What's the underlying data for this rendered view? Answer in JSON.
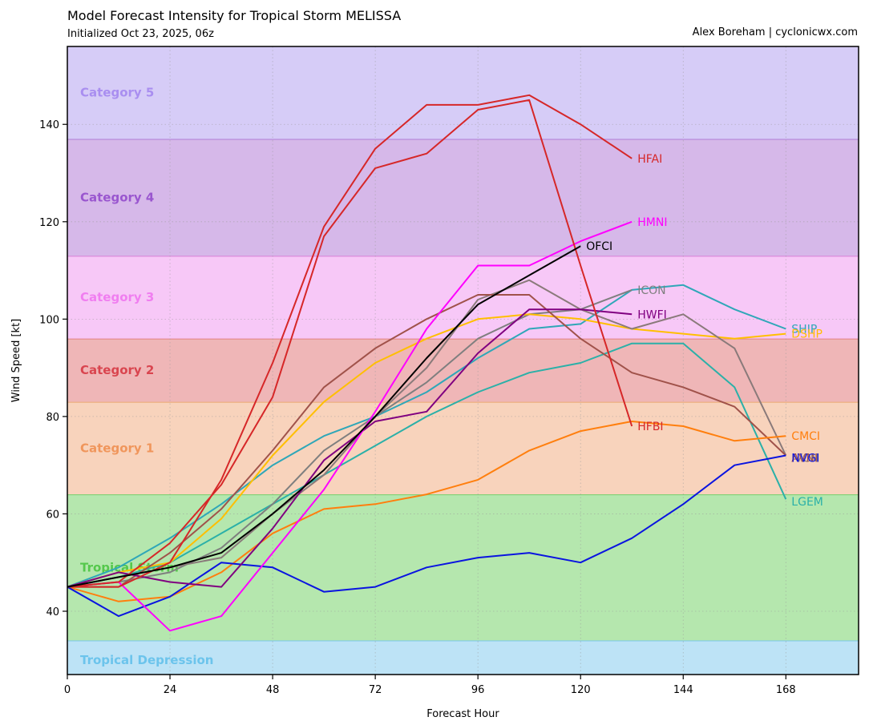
{
  "header": {
    "title": "Model Forecast Intensity for Tropical Storm MELISSA",
    "subtitle": "Initialized Oct 23, 2025, 06z",
    "credit": "Alex Boreham | cyclonicwx.com"
  },
  "chart_data": {
    "type": "line",
    "title": "Model Forecast Intensity for Tropical Storm MELISSA",
    "xlabel": "Forecast Hour",
    "ylabel": "Wind Speed [kt]",
    "xlim": [
      0,
      185
    ],
    "ylim": [
      27,
      156
    ],
    "xticks": [
      0,
      24,
      48,
      72,
      96,
      120,
      144,
      168
    ],
    "yticks": [
      40,
      60,
      80,
      100,
      120,
      140
    ],
    "grid": true,
    "categories": [
      {
        "name": "Tropical Depression",
        "min": 27,
        "max": 34,
        "fill": "#bde3f6",
        "edge": "#7ec8e8",
        "text": "#6cc4ec",
        "label_y": 30
      },
      {
        "name": "Tropical Storm",
        "min": 34,
        "max": 64,
        "fill": "#b5e7ae",
        "edge": "#72cf6c",
        "text": "#55c84c",
        "label_y": 49
      },
      {
        "name": "Category 1",
        "min": 64,
        "max": 83,
        "fill": "#f8d3bc",
        "edge": "#e9a970",
        "text": "#f0965c",
        "label_y": 73.5
      },
      {
        "name": "Category 2",
        "min": 83,
        "max": 96,
        "fill": "#efb6b7",
        "edge": "#e2807f",
        "text": "#d9454f",
        "label_y": 89.5
      },
      {
        "name": "Category 3",
        "min": 96,
        "max": 113,
        "fill": "#f7c8f7",
        "edge": "#d982d9",
        "text": "#f07ef0",
        "label_y": 104.5
      },
      {
        "name": "Category 4",
        "min": 113,
        "max": 137,
        "fill": "#d6b8e9",
        "edge": "#b07fd8",
        "text": "#9a56cf",
        "label_y": 125
      },
      {
        "name": "Category 5",
        "min": 137,
        "max": 156,
        "fill": "#d6ccf7",
        "edge": "#b7a6ef",
        "text": "#a98ef0",
        "label_y": 146.5
      }
    ],
    "series": [
      {
        "name": "LGEM",
        "color": "#2bb0a8",
        "x": [
          0,
          12,
          24,
          36,
          48,
          60,
          72,
          84,
          96,
          108,
          120,
          132,
          144,
          156,
          168
        ],
        "y": [
          45,
          47,
          50,
          56,
          62,
          68,
          74,
          80,
          85,
          89,
          91,
          95,
          95,
          86,
          63
        ],
        "label_y": 62.5
      },
      {
        "name": "SHIP",
        "color": "#2fa7b8",
        "x": [
          0,
          12,
          24,
          36,
          48,
          60,
          72,
          84,
          96,
          108,
          120,
          132,
          144,
          156,
          168
        ],
        "y": [
          45,
          49,
          55,
          62,
          70,
          76,
          80,
          85,
          92,
          98,
          99,
          106,
          107,
          102,
          98
        ],
        "label_y": 98
      },
      {
        "name": "ICON",
        "color": "#7f7f7f",
        "x": [
          0,
          12,
          24,
          36,
          48,
          60,
          72,
          84,
          96,
          108,
          120,
          132
        ],
        "y": [
          45,
          46,
          48,
          53,
          62,
          73,
          80,
          87,
          96,
          101,
          102,
          106
        ],
        "label_y": 106
      },
      {
        "name": "DSHP",
        "color": "#ffbf00",
        "x": [
          0,
          12,
          24,
          36,
          48,
          60,
          72,
          84,
          96,
          108,
          120,
          132,
          144,
          156,
          168
        ],
        "y": [
          45,
          48,
          50,
          59,
          72,
          83,
          91,
          96,
          100,
          101,
          100,
          98,
          97,
          96,
          97
        ],
        "label_y": 97
      },
      {
        "name": "IVCN",
        "color": "#8a7a7a",
        "x": [
          0,
          12,
          24,
          36,
          48,
          60,
          72,
          84,
          96,
          108,
          120,
          132,
          144,
          156,
          168
        ],
        "y": [
          45,
          47,
          49,
          51,
          60,
          68,
          80,
          90,
          104,
          108,
          102,
          98,
          101,
          94,
          72
        ],
        "label_y": 71.5
      },
      {
        "name": "AVNI",
        "color": "#a0524a",
        "x": [
          0,
          12,
          24,
          36,
          48,
          60,
          72,
          84,
          96,
          108,
          120,
          132,
          144,
          156,
          168
        ],
        "y": [
          45,
          45,
          52,
          61,
          73,
          86,
          94,
          100,
          105,
          105,
          96,
          89,
          86,
          82,
          72
        ],
        "label_y": 71.5
      },
      {
        "name": "CMCI",
        "color": "#ff7f0e",
        "x": [
          0,
          12,
          24,
          36,
          48,
          60,
          72,
          84,
          96,
          108,
          120,
          132,
          144,
          156,
          168
        ],
        "y": [
          45,
          42,
          43,
          48,
          56,
          61,
          62,
          64,
          67,
          73,
          77,
          79,
          78,
          75,
          76
        ],
        "label_y": 76
      },
      {
        "name": "NVGI",
        "color": "#0a14e0",
        "x": [
          0,
          12,
          24,
          36,
          48,
          60,
          72,
          84,
          96,
          108,
          120,
          132,
          144,
          156,
          168
        ],
        "y": [
          45,
          39,
          43,
          50,
          49,
          44,
          45,
          49,
          51,
          52,
          50,
          55,
          62,
          70,
          72
        ],
        "label_y": 71.5
      },
      {
        "name": "HWFI",
        "color": "#800080",
        "x": [
          0,
          12,
          24,
          36,
          48,
          60,
          72,
          84,
          96,
          108,
          120,
          132
        ],
        "y": [
          45,
          48,
          46,
          45,
          57,
          71,
          79,
          81,
          93,
          102,
          102,
          101
        ],
        "label_y": 101
      },
      {
        "name": "HMNI",
        "color": "#ff00ff",
        "x": [
          0,
          12,
          24,
          36,
          48,
          60,
          72,
          84,
          96,
          108,
          120,
          132
        ],
        "y": [
          45,
          46,
          36,
          39,
          52,
          65,
          81,
          98,
          111,
          111,
          116,
          120
        ],
        "label_y": 120
      },
      {
        "name": "HFBI",
        "color": "#d62728",
        "x": [
          0,
          12,
          24,
          36,
          48,
          60,
          72,
          84,
          96,
          108,
          120,
          132
        ],
        "y": [
          45,
          46,
          54,
          66,
          84,
          117,
          131,
          134,
          143,
          145,
          111,
          78
        ],
        "label_y": 78
      },
      {
        "name": "HFAI",
        "color": "#d62728",
        "x": [
          0,
          12,
          24,
          36,
          48,
          60,
          72,
          84,
          96,
          108,
          120,
          132
        ],
        "y": [
          45,
          45,
          50,
          67,
          91,
          119,
          135,
          144,
          144,
          146,
          140,
          133
        ],
        "label_y": 133
      },
      {
        "name": "OFCI",
        "color": "#000000",
        "x": [
          0,
          12,
          24,
          36,
          48,
          60,
          72,
          84,
          96,
          108,
          120
        ],
        "y": [
          45,
          47,
          49,
          52,
          60,
          69,
          80,
          92,
          103,
          109,
          115
        ],
        "label_y": 115
      }
    ]
  }
}
